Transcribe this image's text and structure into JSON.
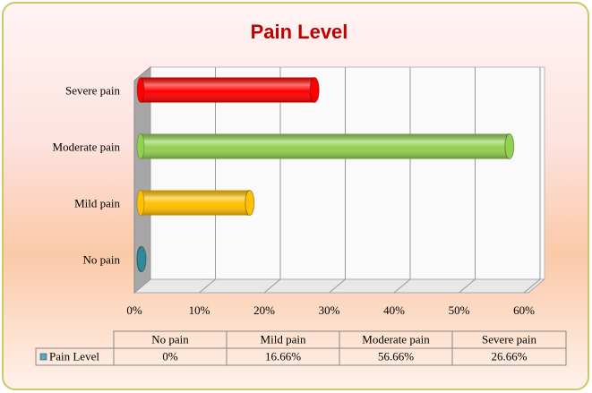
{
  "chart_data": {
    "type": "bar",
    "orientation": "horizontal",
    "title": "Pain Level",
    "categories": [
      "No pain",
      "Mild pain",
      "Moderate pain",
      "Severe pain"
    ],
    "series": [
      {
        "name": "Pain Level",
        "color": "#4bacc6",
        "values": [
          0,
          16.66,
          56.66,
          26.66
        ],
        "value_labels": [
          "0%",
          "16.66%",
          "56.66%",
          "26.66%"
        ],
        "colors": [
          "#2e8b9a",
          "#ffc000",
          "#92d050",
          "#ff0000"
        ]
      }
    ],
    "xlim": [
      0,
      60
    ],
    "xticks": [
      {
        "value": 0,
        "label": "0%"
      },
      {
        "value": 10,
        "label": "10%"
      },
      {
        "value": 20,
        "label": "20%"
      },
      {
        "value": 30,
        "label": "30%"
      },
      {
        "value": 40,
        "label": "40%"
      },
      {
        "value": 50,
        "label": "50%"
      },
      {
        "value": 60,
        "label": "60%"
      }
    ],
    "grid": true,
    "data_table": true
  }
}
